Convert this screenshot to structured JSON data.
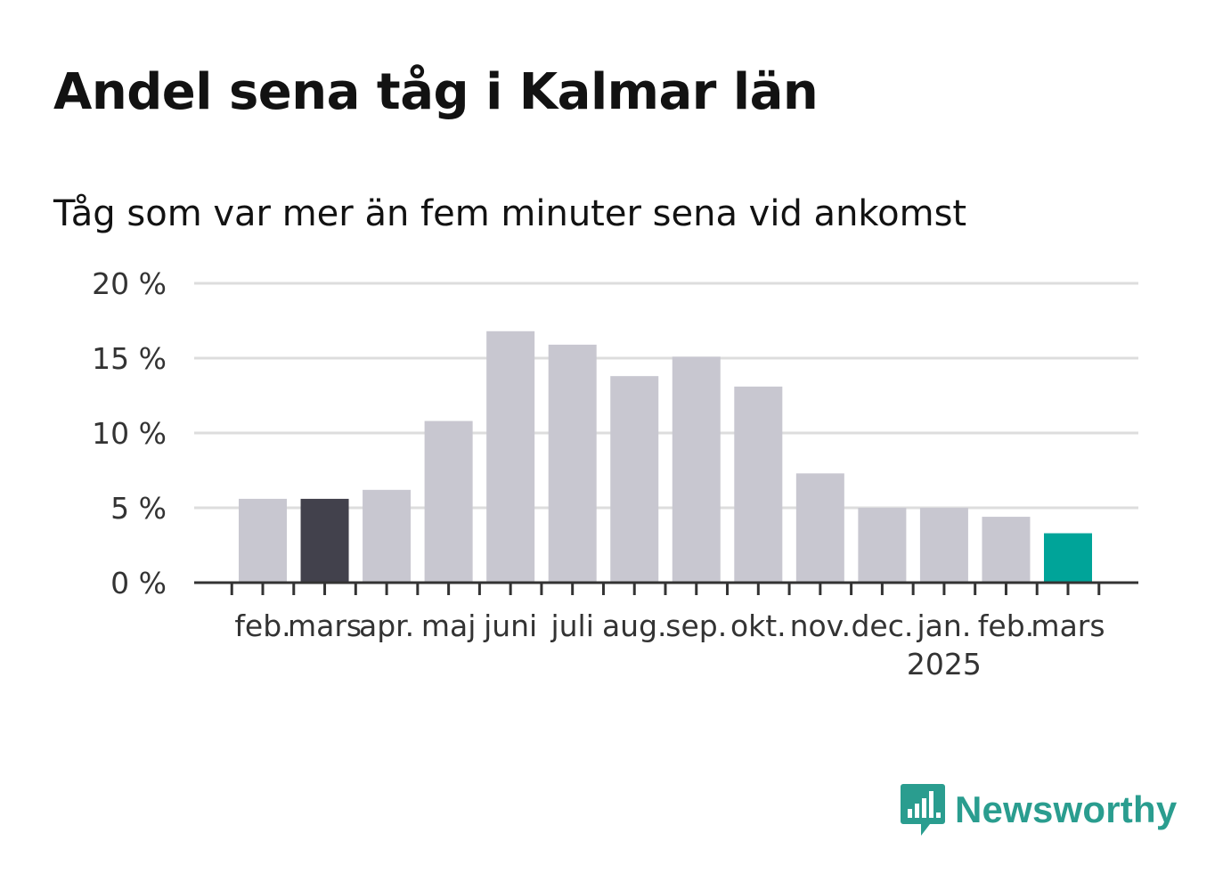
{
  "title": "Andel sena tåg i Kalmar län",
  "subtitle": "Tåg som var mer än fem minuter sena vid ankomst",
  "brand": {
    "name": "Newsworthy",
    "icon": "newsworthy-logo-icon",
    "color": "#2a9d8f"
  },
  "chart_data": {
    "type": "bar",
    "categories": [
      "feb.",
      "mars",
      "apr.",
      "maj",
      "juni",
      "juli",
      "aug.",
      "sep.",
      "okt.",
      "nov.",
      "dec.",
      "jan.",
      "feb.",
      "mars"
    ],
    "year_label": "2025",
    "values": [
      5.6,
      5.6,
      6.2,
      10.8,
      16.8,
      15.9,
      13.8,
      15.1,
      13.1,
      7.3,
      5.0,
      5.0,
      4.4,
      3.3
    ],
    "y_ticks": [
      "0 %",
      "5 %",
      "10 %",
      "15 %",
      "20 %"
    ],
    "ylim": [
      0,
      20
    ],
    "grid": true,
    "colors": {
      "default": "#c8c7d0",
      "highlight_previous_year": "#42414c",
      "highlight_current": "#00a499",
      "grid": "#dddddd",
      "axis": "#333333"
    },
    "highlight": {
      "1": "highlight_previous_year",
      "13": "highlight_current"
    }
  }
}
